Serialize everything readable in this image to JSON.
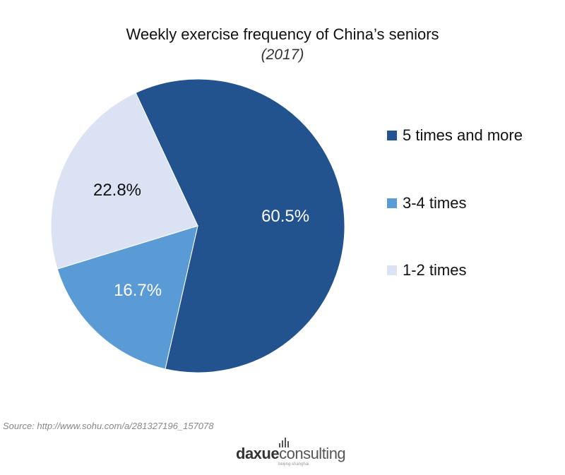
{
  "chart_data": {
    "type": "pie",
    "title": "Weekly exercise frequency of China’s seniors",
    "subtitle": "(2017)",
    "slices": [
      {
        "name": "5 times and more",
        "value": 60.5,
        "label": "60.5%",
        "color": "#22538f",
        "label_color": "#ffffff"
      },
      {
        "name": "3-4 times",
        "value": 16.7,
        "label": "16.7%",
        "color": "#5b9bd5",
        "label_color": "#ffffff"
      },
      {
        "name": "1-2 times",
        "value": 22.8,
        "label": "22.8%",
        "color": "#dae2f3",
        "label_color": "#111111"
      }
    ],
    "legend_position": "right"
  },
  "footer": {
    "source": "Source: http://www.sohu.com/a/281327196_157078",
    "logo_part1": "daxue",
    "logo_part2": "consulting",
    "logo_tagline": "beijing shanghai"
  }
}
